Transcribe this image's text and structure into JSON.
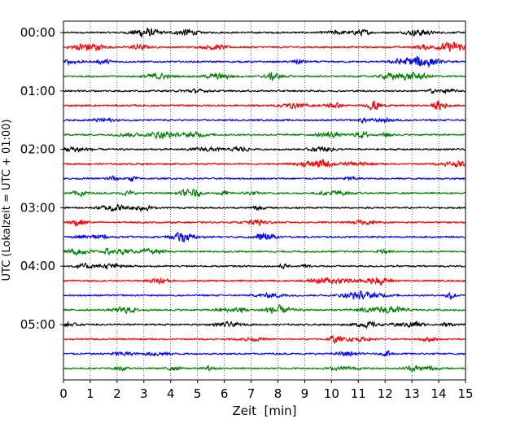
{
  "chart_data": {
    "type": "line",
    "title": "",
    "xlabel": "Zeit  [min]",
    "ylabel": "UTC (Lokalzeit = UTC + 01:00)",
    "xlim": [
      0,
      15
    ],
    "x_ticks": [
      "0",
      "1",
      "2",
      "3",
      "4",
      "5",
      "6",
      "7",
      "8",
      "9",
      "10",
      "11",
      "12",
      "13",
      "14",
      "15"
    ],
    "y_ticks": [
      "00:00",
      "01:00",
      "02:00",
      "03:00",
      "04:00",
      "05:00"
    ],
    "grid": "vertical dotted lines at each minute",
    "trace_interval_minutes": 15,
    "trace_count": 24,
    "trace_colors": [
      "#000000",
      "#ff0000",
      "#0000ff",
      "#008000"
    ],
    "trace_start_times": [
      "00:00",
      "00:15",
      "00:30",
      "00:45",
      "01:00",
      "01:15",
      "01:30",
      "01:45",
      "02:00",
      "02:15",
      "02:30",
      "02:45",
      "03:00",
      "03:15",
      "03:30",
      "03:45",
      "04:00",
      "04:15",
      "04:30",
      "04:45",
      "05:00",
      "05:15",
      "05:30",
      "05:45"
    ]
  }
}
